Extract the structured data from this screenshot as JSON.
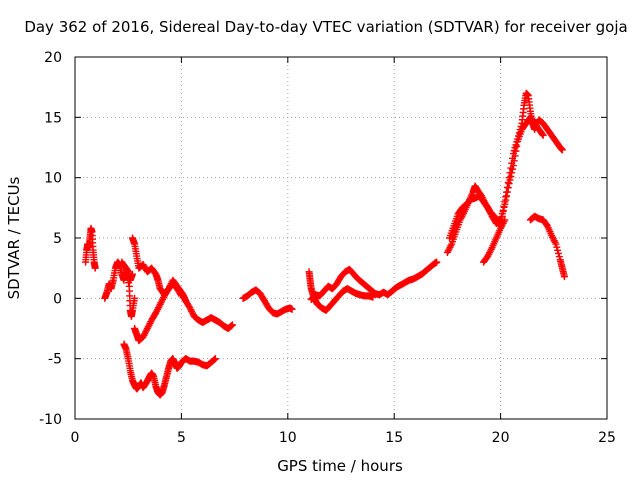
{
  "chart_data": {
    "type": "scatter",
    "title": "Day 362 of 2016, Sidereal Day-to-day VTEC variation (SDTVAR) for receiver goja",
    "xlabel": "GPS time / hours",
    "ylabel": "SDTVAR / TECUs",
    "xlim": [
      0,
      25
    ],
    "ylim": [
      -10,
      20
    ],
    "xticks": [
      "0",
      "5",
      "10",
      "15",
      "20",
      "25"
    ],
    "yticks": [
      "-10",
      "-5",
      "0",
      "5",
      "10",
      "15",
      "20"
    ],
    "xtick_values": [
      0,
      5,
      10,
      15,
      20,
      25
    ],
    "ytick_values": [
      -10,
      -5,
      0,
      5,
      10,
      15,
      20
    ],
    "grid": true,
    "marker": "+",
    "color": "#ff0000",
    "series": [
      {
        "name": "seg1",
        "points": [
          [
            0.5,
            3
          ],
          [
            0.55,
            4
          ],
          [
            0.6,
            4.5
          ],
          [
            0.65,
            4.2
          ],
          [
            0.7,
            5
          ],
          [
            0.75,
            5.8
          ],
          [
            0.8,
            5.5
          ],
          [
            0.85,
            4
          ],
          [
            0.9,
            3
          ],
          [
            0.95,
            2.5
          ]
        ]
      },
      {
        "name": "seg2",
        "points": [
          [
            1.4,
            0
          ],
          [
            1.5,
            0.5
          ],
          [
            1.6,
            1.2
          ],
          [
            1.7,
            0.8
          ],
          [
            1.8,
            1.5
          ],
          [
            1.9,
            2.5
          ],
          [
            2.0,
            3
          ],
          [
            2.1,
            2.8
          ],
          [
            2.2,
            2
          ],
          [
            2.3,
            1.5
          ],
          [
            2.4,
            2.5
          ],
          [
            2.5,
            2.2
          ],
          [
            2.6,
            1.5
          ],
          [
            2.7,
            2
          ]
        ]
      },
      {
        "name": "seg3",
        "points": [
          [
            2.2,
            3
          ],
          [
            2.4,
            2.5
          ],
          [
            2.55,
            1
          ],
          [
            2.6,
            -1
          ],
          [
            2.65,
            -1.5
          ],
          [
            2.7,
            -1
          ],
          [
            2.8,
            0
          ]
        ]
      },
      {
        "name": "seg4",
        "points": [
          [
            2.7,
            5
          ],
          [
            2.8,
            4.5
          ],
          [
            2.9,
            3.5
          ],
          [
            3.0,
            2.5
          ],
          [
            3.2,
            2.8
          ],
          [
            3.4,
            2.2
          ],
          [
            3.6,
            2.5
          ],
          [
            3.8,
            2
          ],
          [
            3.9,
            1.5
          ],
          [
            4.0,
            0.8
          ],
          [
            4.2,
            0.3
          ],
          [
            4.4,
            0.8
          ],
          [
            4.6,
            1.5
          ],
          [
            4.8,
            1.0
          ],
          [
            5.0,
            0.5
          ],
          [
            5.1,
            0.2
          ],
          [
            5.2,
            -0.2
          ],
          [
            5.4,
            -0.8
          ],
          [
            5.6,
            -1.5
          ],
          [
            5.8,
            -1.8
          ],
          [
            6.0,
            -2
          ],
          [
            6.2,
            -1.8
          ],
          [
            6.4,
            -1.6
          ],
          [
            6.6,
            -1.8
          ],
          [
            6.8,
            -2
          ],
          [
            7.0,
            -2.3
          ],
          [
            7.2,
            -2.5
          ],
          [
            7.4,
            -2.2
          ]
        ]
      },
      {
        "name": "seg5",
        "points": [
          [
            2.8,
            -2.5
          ],
          [
            2.9,
            -3
          ],
          [
            3.0,
            -3.5
          ],
          [
            3.2,
            -3.2
          ],
          [
            3.4,
            -2.5
          ],
          [
            3.6,
            -1.8
          ],
          [
            3.8,
            -1.2
          ],
          [
            4.0,
            -0.5
          ],
          [
            4.2,
            0.2
          ],
          [
            4.4,
            0.8
          ],
          [
            4.6,
            1.2
          ],
          [
            4.8,
            0.8
          ],
          [
            5.0,
            0.2
          ]
        ]
      },
      {
        "name": "seg6",
        "points": [
          [
            2.3,
            -3.8
          ],
          [
            2.4,
            -4.2
          ],
          [
            2.5,
            -5
          ],
          [
            2.6,
            -6
          ],
          [
            2.7,
            -6.8
          ],
          [
            2.8,
            -7.2
          ],
          [
            2.9,
            -7.5
          ],
          [
            3.0,
            -7.3
          ],
          [
            3.1,
            -7.0
          ],
          [
            3.2,
            -7.4
          ],
          [
            3.35,
            -7.0
          ],
          [
            3.5,
            -6.5
          ],
          [
            3.6,
            -6.2
          ],
          [
            3.7,
            -6.5
          ],
          [
            3.8,
            -7.3
          ],
          [
            3.9,
            -7.8
          ],
          [
            4.0,
            -8.0
          ],
          [
            4.1,
            -7.8
          ],
          [
            4.2,
            -7.2
          ],
          [
            4.3,
            -6.5
          ],
          [
            4.4,
            -5.8
          ],
          [
            4.5,
            -5.2
          ],
          [
            4.6,
            -5
          ],
          [
            4.7,
            -5.4
          ],
          [
            4.8,
            -5.8
          ],
          [
            4.9,
            -5.6
          ],
          [
            5.0,
            -5.3
          ],
          [
            5.2,
            -5
          ],
          [
            5.4,
            -5.2
          ],
          [
            5.6,
            -5.2
          ],
          [
            5.8,
            -5.3
          ],
          [
            6.0,
            -5.5
          ],
          [
            6.2,
            -5.6
          ],
          [
            6.4,
            -5.3
          ],
          [
            6.6,
            -5
          ]
        ]
      },
      {
        "name": "seg7",
        "points": [
          [
            7.9,
            0
          ],
          [
            8.1,
            0.2
          ],
          [
            8.3,
            0.5
          ],
          [
            8.5,
            0.7
          ],
          [
            8.7,
            0.4
          ],
          [
            8.9,
            -0.2
          ],
          [
            9.1,
            -0.8
          ],
          [
            9.3,
            -1.2
          ],
          [
            9.5,
            -1.3
          ],
          [
            9.7,
            -1.1
          ],
          [
            9.9,
            -0.9
          ],
          [
            10.1,
            -0.8
          ],
          [
            10.2,
            -0.9
          ]
        ]
      },
      {
        "name": "seg8",
        "points": [
          [
            11.0,
            2.2
          ],
          [
            11.05,
            1.5
          ],
          [
            11.1,
            0.8
          ],
          [
            11.2,
            0.2
          ],
          [
            11.3,
            -0.2
          ],
          [
            11.4,
            -0.5
          ],
          [
            11.6,
            -0.8
          ],
          [
            11.8,
            -1
          ],
          [
            12.0,
            -0.6
          ],
          [
            12.2,
            -0.2
          ],
          [
            12.4,
            0.2
          ],
          [
            12.6,
            0.6
          ],
          [
            12.8,
            0.8
          ],
          [
            13.0,
            0.6
          ],
          [
            13.2,
            0.4
          ],
          [
            13.4,
            0.3
          ],
          [
            13.6,
            0.2
          ],
          [
            13.8,
            0.2
          ],
          [
            14.0,
            0.1
          ]
        ]
      },
      {
        "name": "seg9",
        "points": [
          [
            11.1,
            -0.1
          ],
          [
            11.3,
            0.3
          ],
          [
            11.5,
            0.2
          ],
          [
            11.7,
            0.6
          ],
          [
            11.9,
            1
          ],
          [
            12.1,
            0.8
          ],
          [
            12.3,
            1.2
          ],
          [
            12.5,
            1.8
          ],
          [
            12.7,
            2.2
          ],
          [
            12.9,
            2.4
          ],
          [
            13.1,
            2.0
          ],
          [
            13.3,
            1.6
          ],
          [
            13.5,
            1.3
          ],
          [
            13.7,
            1.0
          ],
          [
            13.9,
            0.7
          ],
          [
            14.1,
            0.4
          ],
          [
            14.3,
            0.3
          ],
          [
            14.5,
            0.5
          ],
          [
            14.7,
            0.3
          ],
          [
            14.9,
            0.6
          ],
          [
            15.1,
            0.9
          ],
          [
            15.3,
            1.1
          ],
          [
            15.5,
            1.3
          ],
          [
            15.7,
            1.5
          ],
          [
            15.9,
            1.6
          ],
          [
            16.1,
            1.8
          ],
          [
            16.3,
            2.0
          ],
          [
            16.5,
            2.3
          ],
          [
            16.7,
            2.6
          ],
          [
            16.9,
            2.9
          ],
          [
            17.0,
            3.0
          ]
        ]
      },
      {
        "name": "seg10",
        "points": [
          [
            17.5,
            3.8
          ],
          [
            17.7,
            4.5
          ],
          [
            17.9,
            5.5
          ],
          [
            18.1,
            6.5
          ],
          [
            18.3,
            7.2
          ],
          [
            18.5,
            8
          ],
          [
            18.7,
            8.8
          ],
          [
            18.8,
            9.3
          ],
          [
            18.9,
            9.0
          ],
          [
            19.1,
            8.5
          ],
          [
            19.3,
            7.8
          ],
          [
            19.5,
            7.2
          ],
          [
            19.7,
            6.8
          ],
          [
            19.9,
            6.3
          ],
          [
            20.0,
            6.0
          ],
          [
            20.2,
            8
          ],
          [
            20.4,
            10
          ],
          [
            20.6,
            12
          ],
          [
            20.8,
            13.2
          ],
          [
            21.0,
            14.5
          ],
          [
            21.1,
            16
          ],
          [
            21.2,
            17
          ],
          [
            21.3,
            16.8
          ],
          [
            21.4,
            15.5
          ],
          [
            21.5,
            14.5
          ],
          [
            21.6,
            14.0
          ],
          [
            21.8,
            14.8
          ],
          [
            22.0,
            14.5
          ],
          [
            22.2,
            14.0
          ],
          [
            22.4,
            13.5
          ],
          [
            22.6,
            13.0
          ],
          [
            22.8,
            12.5
          ],
          [
            22.9,
            12.3
          ]
        ]
      },
      {
        "name": "seg11",
        "points": [
          [
            17.6,
            5
          ],
          [
            17.8,
            6
          ],
          [
            18.0,
            7
          ],
          [
            18.2,
            7.5
          ],
          [
            18.4,
            7.8
          ],
          [
            18.6,
            8.2
          ],
          [
            18.8,
            8.3
          ],
          [
            19.0,
            8.5
          ],
          [
            19.2,
            8.0
          ],
          [
            19.4,
            7.5
          ],
          [
            19.6,
            6.8
          ],
          [
            19.8,
            6.2
          ],
          [
            20.0,
            6.5
          ],
          [
            20.2,
            7.8
          ],
          [
            20.4,
            9.5
          ],
          [
            20.6,
            11
          ],
          [
            20.8,
            13
          ],
          [
            21.0,
            14
          ],
          [
            21.2,
            14.5
          ],
          [
            21.4,
            15
          ],
          [
            21.6,
            14.5
          ],
          [
            21.8,
            14.0
          ],
          [
            22.0,
            13.5
          ]
        ]
      },
      {
        "name": "seg12",
        "points": [
          [
            19.2,
            3
          ],
          [
            19.4,
            3.5
          ],
          [
            19.6,
            4.2
          ],
          [
            19.8,
            5
          ],
          [
            20.0,
            5.8
          ],
          [
            20.2,
            6.5
          ]
        ]
      },
      {
        "name": "seg13",
        "points": [
          [
            21.4,
            6.5
          ],
          [
            21.6,
            6.8
          ],
          [
            21.8,
            6.6
          ],
          [
            22.0,
            6.5
          ],
          [
            22.2,
            6
          ],
          [
            22.4,
            5.2
          ],
          [
            22.6,
            4.5
          ],
          [
            22.8,
            3.2
          ],
          [
            22.9,
            2.5
          ],
          [
            23.0,
            1.8
          ]
        ]
      }
    ]
  }
}
